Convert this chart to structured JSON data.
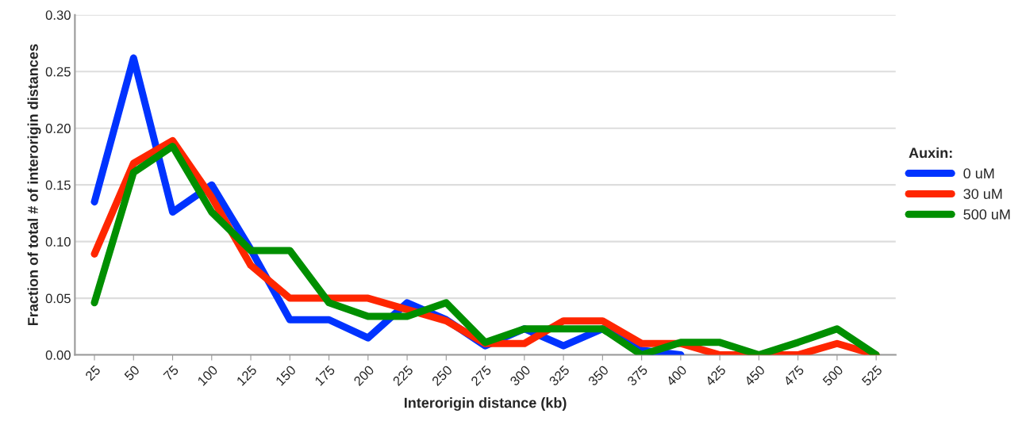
{
  "chart_data": {
    "type": "line",
    "xlabel": "Interorigin distance (kb)",
    "ylabel": "Fraction of total # of interorigin distances",
    "legend_title": "Auxin:",
    "categories": [
      "25",
      "50",
      "75",
      "100",
      "125",
      "150",
      "175",
      "200",
      "225",
      "250",
      "275",
      "300",
      "325",
      "350",
      "375",
      "400",
      "425",
      "450",
      "475",
      "500",
      "525"
    ],
    "series": [
      {
        "name": "0 uM",
        "color": "#0033ff",
        "values": [
          0.135,
          0.262,
          0.126,
          0.15,
          0.093,
          0.031,
          0.031,
          0.015,
          0.046,
          0.031,
          0.008,
          0.023,
          0.008,
          0.023,
          0.004,
          0.0,
          null,
          null,
          null,
          null,
          null
        ]
      },
      {
        "name": "30 uM",
        "color": "#ff2600",
        "values": [
          0.089,
          0.169,
          0.189,
          0.139,
          0.079,
          0.05,
          0.05,
          0.05,
          0.04,
          0.03,
          0.01,
          0.01,
          0.03,
          0.03,
          0.01,
          0.01,
          0.0,
          0.0,
          0.0,
          0.01,
          0.0
        ]
      },
      {
        "name": "500 uM",
        "color": "#008f00",
        "values": [
          0.046,
          0.161,
          0.184,
          0.126,
          0.092,
          0.092,
          0.046,
          0.034,
          0.034,
          0.046,
          0.011,
          0.023,
          0.023,
          0.023,
          0.0,
          0.011,
          0.011,
          0.0,
          0.011,
          0.023,
          0.0
        ]
      }
    ],
    "ylim": [
      0,
      0.3
    ],
    "yticks": [
      {
        "value": 0,
        "label": "0.00"
      },
      {
        "value": 0.05,
        "label": "0.05"
      },
      {
        "value": 0.1,
        "label": "0.10"
      },
      {
        "value": 0.15,
        "label": "0.15"
      },
      {
        "value": 0.2,
        "label": "0.20"
      },
      {
        "value": 0.25,
        "label": "0.25"
      },
      {
        "value": 0.3,
        "label": "0.30"
      }
    ],
    "grid": "y",
    "legend": "right",
    "marker": "none",
    "line_style": "solid"
  }
}
